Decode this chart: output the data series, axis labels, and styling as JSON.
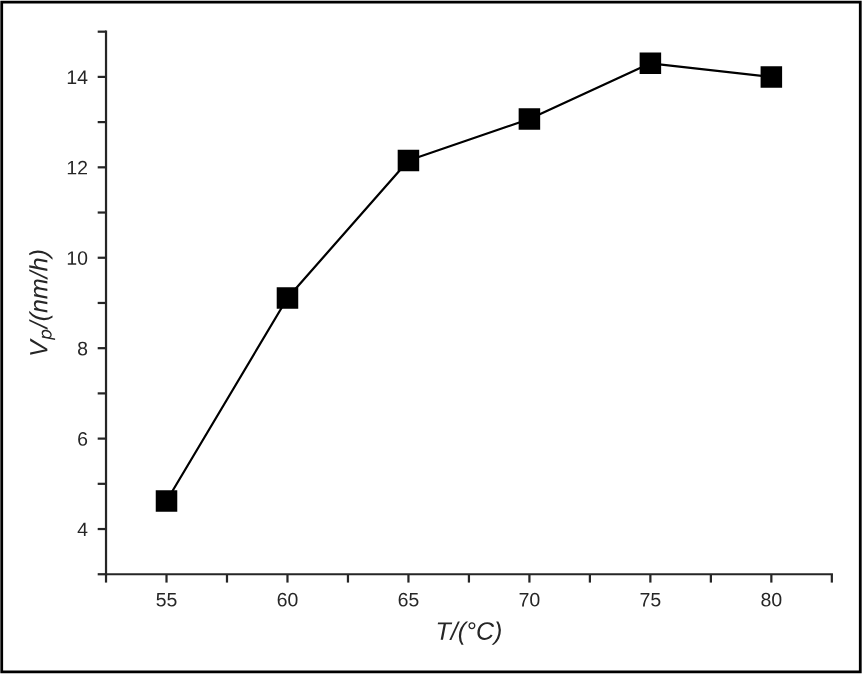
{
  "chart_data": {
    "type": "line",
    "xlabel": "T/(°C)",
    "ylabel": "V$_{p}$/(nm/h)",
    "x": [
      55,
      60,
      65,
      70,
      75,
      80
    ],
    "series": [
      {
        "color": "#000000",
        "values": [
          4.62,
          9.11,
          12.15,
          13.07,
          14.3,
          14.0
        ]
      }
    ],
    "xlim": [
      52.5,
      82.5
    ],
    "ylim": [
      3,
      15
    ],
    "xticks": [
      {
        "value": 52.5,
        "label": null
      },
      55,
      {
        "value": 57.5,
        "label": null
      },
      60,
      {
        "value": 62.5,
        "label": null
      },
      65,
      {
        "value": 67.5,
        "label": null
      },
      70,
      {
        "value": 72.5,
        "label": null
      },
      75,
      {
        "value": 77.5,
        "label": null
      },
      80,
      {
        "value": 82.5,
        "label": null
      }
    ],
    "yticks": [
      {
        "value": 3,
        "label": null
      },
      4,
      {
        "value": 5,
        "label": null
      },
      6,
      {
        "value": 7,
        "label": null
      },
      8,
      {
        "value": 9,
        "label": null
      },
      10,
      {
        "value": 11,
        "label": null
      },
      12,
      {
        "value": 13,
        "label": null
      },
      14,
      {
        "value": 15,
        "label": null
      }
    ],
    "marker": "square",
    "line_style": "solid",
    "grid": false,
    "legend": false
  }
}
